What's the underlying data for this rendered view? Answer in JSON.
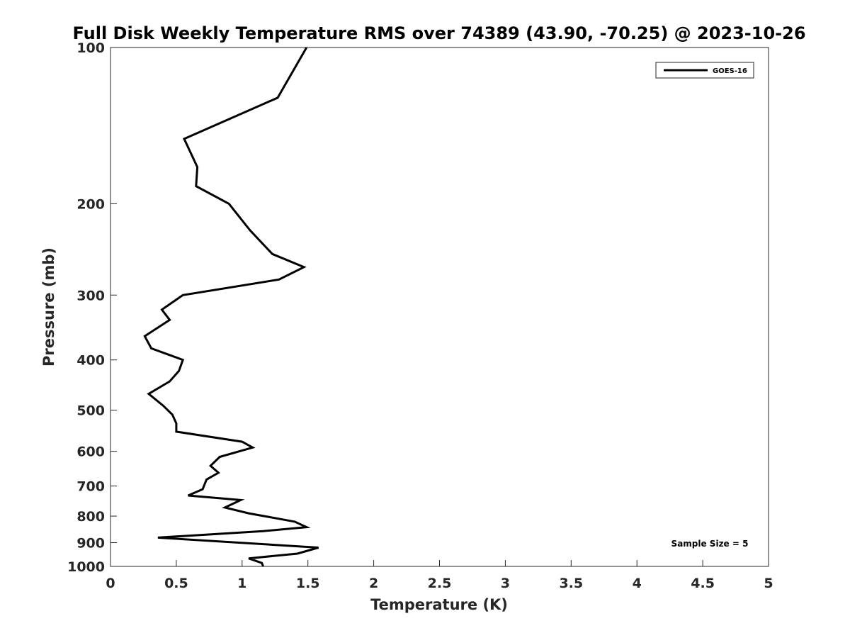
{
  "chart_data": {
    "type": "line",
    "title": "Full Disk Weekly Temperature RMS over 74389 (43.90, -70.25) @ 2023-10-26",
    "xlabel": "Temperature (K)",
    "ylabel": "Pressure (mb)",
    "xlim": [
      0,
      5
    ],
    "ylim": [
      1000,
      100
    ],
    "yscale": "log",
    "y_inverted": true,
    "grid": false,
    "legend_position": "top-right",
    "x_ticks": [
      "0",
      "0.5",
      "1",
      "1.5",
      "2",
      "2.5",
      "3",
      "3.5",
      "4",
      "4.5",
      "5"
    ],
    "x_tick_values": [
      0,
      0.5,
      1,
      1.5,
      2,
      2.5,
      3,
      3.5,
      4,
      4.5,
      5
    ],
    "y_ticks": [
      "100",
      "200",
      "300",
      "400",
      "500",
      "600",
      "700",
      "800",
      "900",
      "1000"
    ],
    "y_tick_values": [
      100,
      200,
      300,
      400,
      500,
      600,
      700,
      800,
      900,
      1000
    ],
    "annotation": "Sample Size = 5",
    "series": [
      {
        "name": "GOES-16",
        "color": "#000000",
        "x": [
          1.49,
          1.27,
          0.56,
          0.66,
          0.65,
          0.9,
          1.06,
          1.23,
          1.47,
          1.28,
          0.55,
          0.39,
          0.45,
          0.26,
          0.31,
          0.55,
          0.52,
          0.45,
          0.29,
          0.4,
          0.47,
          0.5,
          0.5,
          1.0,
          1.08,
          0.83,
          0.76,
          0.82,
          0.73,
          0.7,
          0.59,
          0.99,
          0.87,
          1.05,
          1.4,
          1.49,
          1.16,
          0.36,
          1.58,
          1.42,
          1.05,
          1.15,
          1.16
        ],
        "y": [
          100,
          125,
          150,
          170,
          185,
          200,
          225,
          250,
          265,
          280,
          300,
          320,
          335,
          360,
          380,
          400,
          420,
          440,
          465,
          490,
          510,
          530,
          550,
          575,
          590,
          615,
          640,
          660,
          680,
          710,
          730,
          745,
          770,
          790,
          820,
          840,
          855,
          880,
          920,
          945,
          965,
          985,
          1000
        ]
      }
    ]
  }
}
